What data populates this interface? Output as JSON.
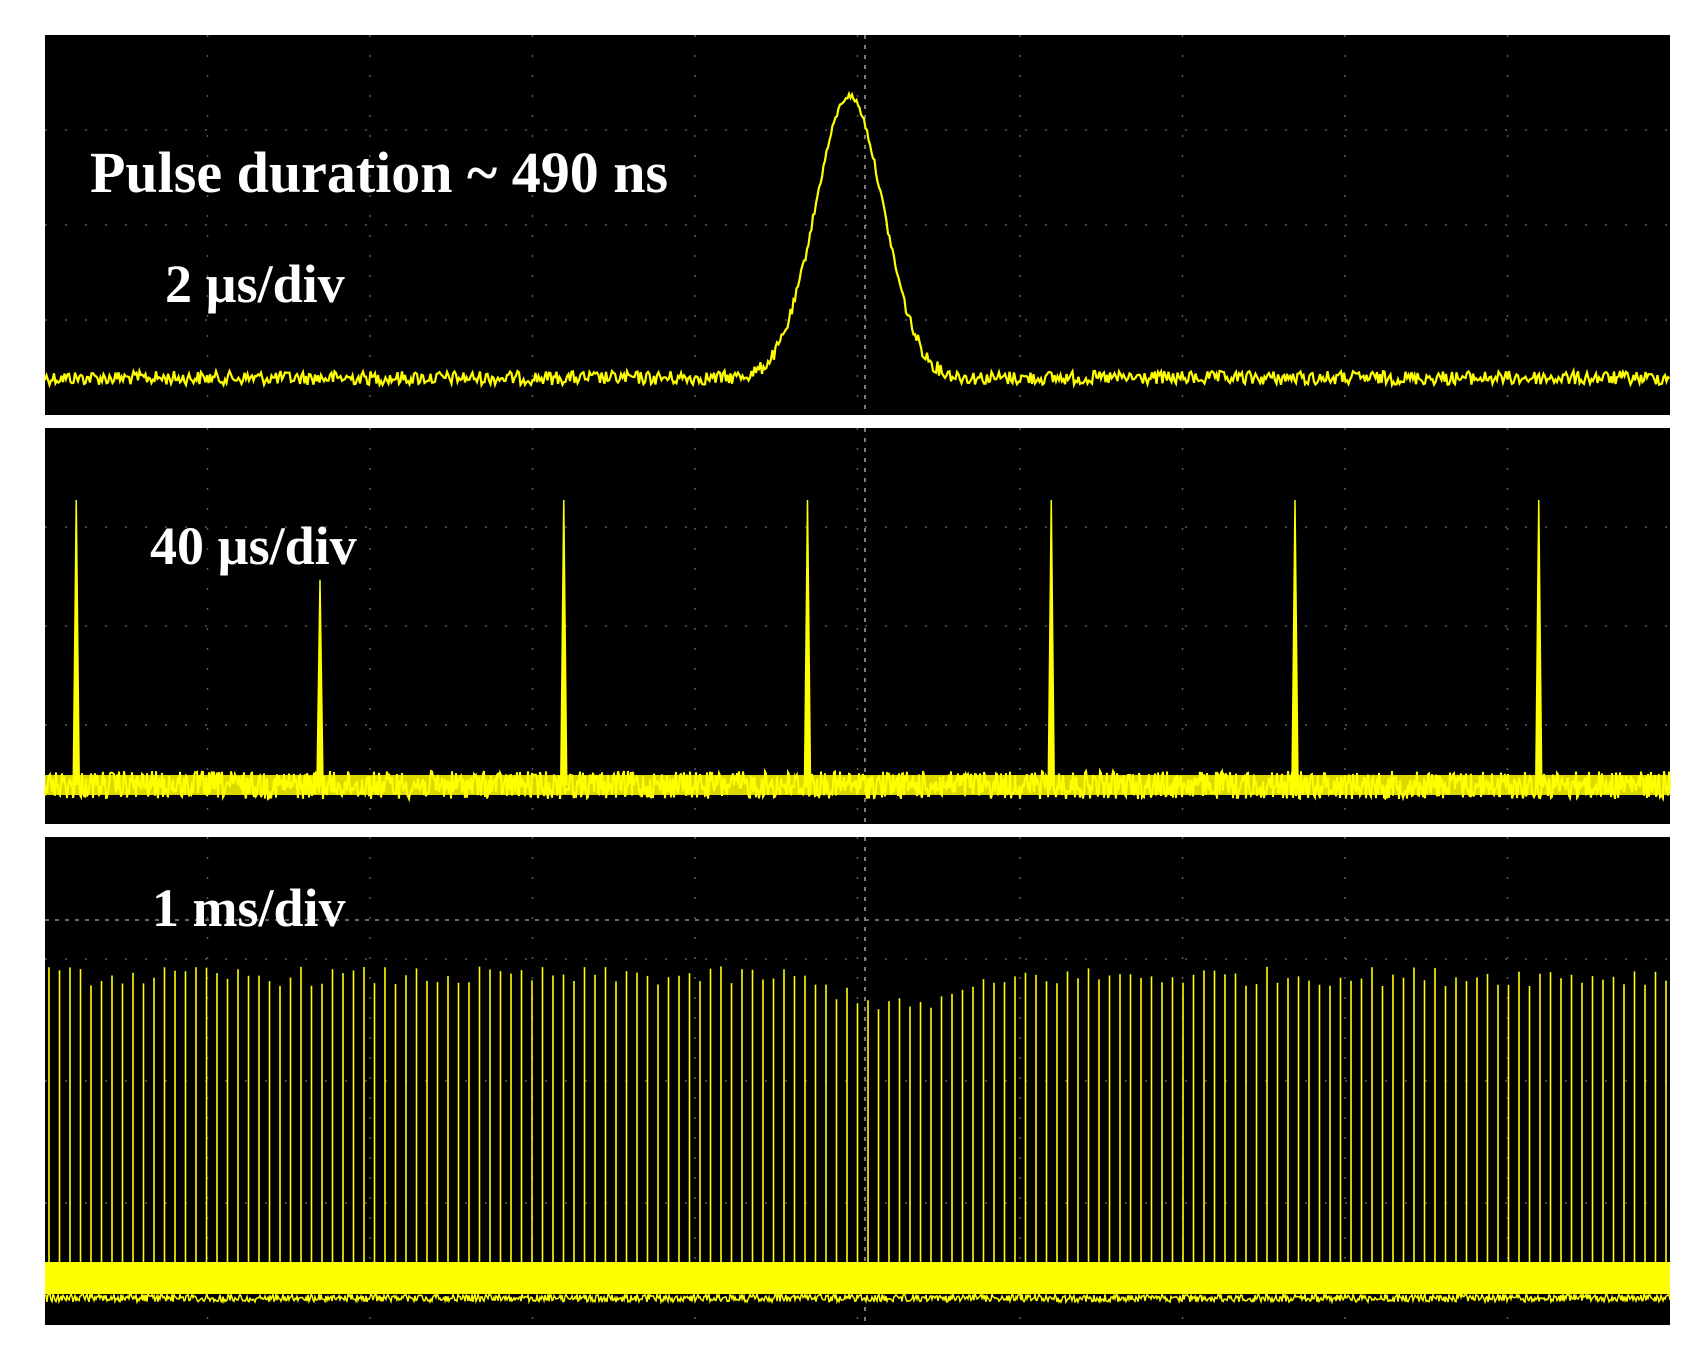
{
  "chart_data": [
    {
      "type": "line",
      "name": "pulse-shape",
      "annotations": [
        "Pulse duration ~ 490 ns",
        "2 µs/div"
      ],
      "time_per_div": "2 µs/div",
      "pulse_duration_ns": 490,
      "x_divisions": 10,
      "baseline_level": 0.0,
      "peak_level": 1.0,
      "peak_position_div": 4.95,
      "grid": true,
      "trace_color": "#ffff00",
      "background": "#000000"
    },
    {
      "type": "line",
      "name": "pulse-train",
      "annotations": [
        "40 µs/div"
      ],
      "time_per_div": "40 µs/div",
      "x_divisions": 10,
      "pulse_positions_div": [
        0.5,
        2.0,
        3.5,
        5.0,
        6.5,
        8.0,
        9.5
      ],
      "pulse_levels": [
        1.0,
        0.72,
        1.0,
        1.0,
        1.0,
        1.0,
        1.0
      ],
      "baseline_level": 0.0,
      "grid": true,
      "trace_color": "#ffff00",
      "background": "#000000"
    },
    {
      "type": "line",
      "name": "long-pulse-train",
      "annotations": [
        "1 ms/div"
      ],
      "time_per_div": "1 ms/div",
      "x_divisions": 10,
      "pulses_per_div": 15.5,
      "typical_pulse_level": 0.92,
      "min_pulse_level_near_center": 0.82,
      "baseline_level": 0.0,
      "grid": true,
      "trace_color": "#ffff00",
      "background": "#000000"
    }
  ],
  "colors": {
    "screen": "#000000",
    "trace": "#ffff00",
    "text": "#ffffff",
    "grid": "#5a5a5a"
  }
}
